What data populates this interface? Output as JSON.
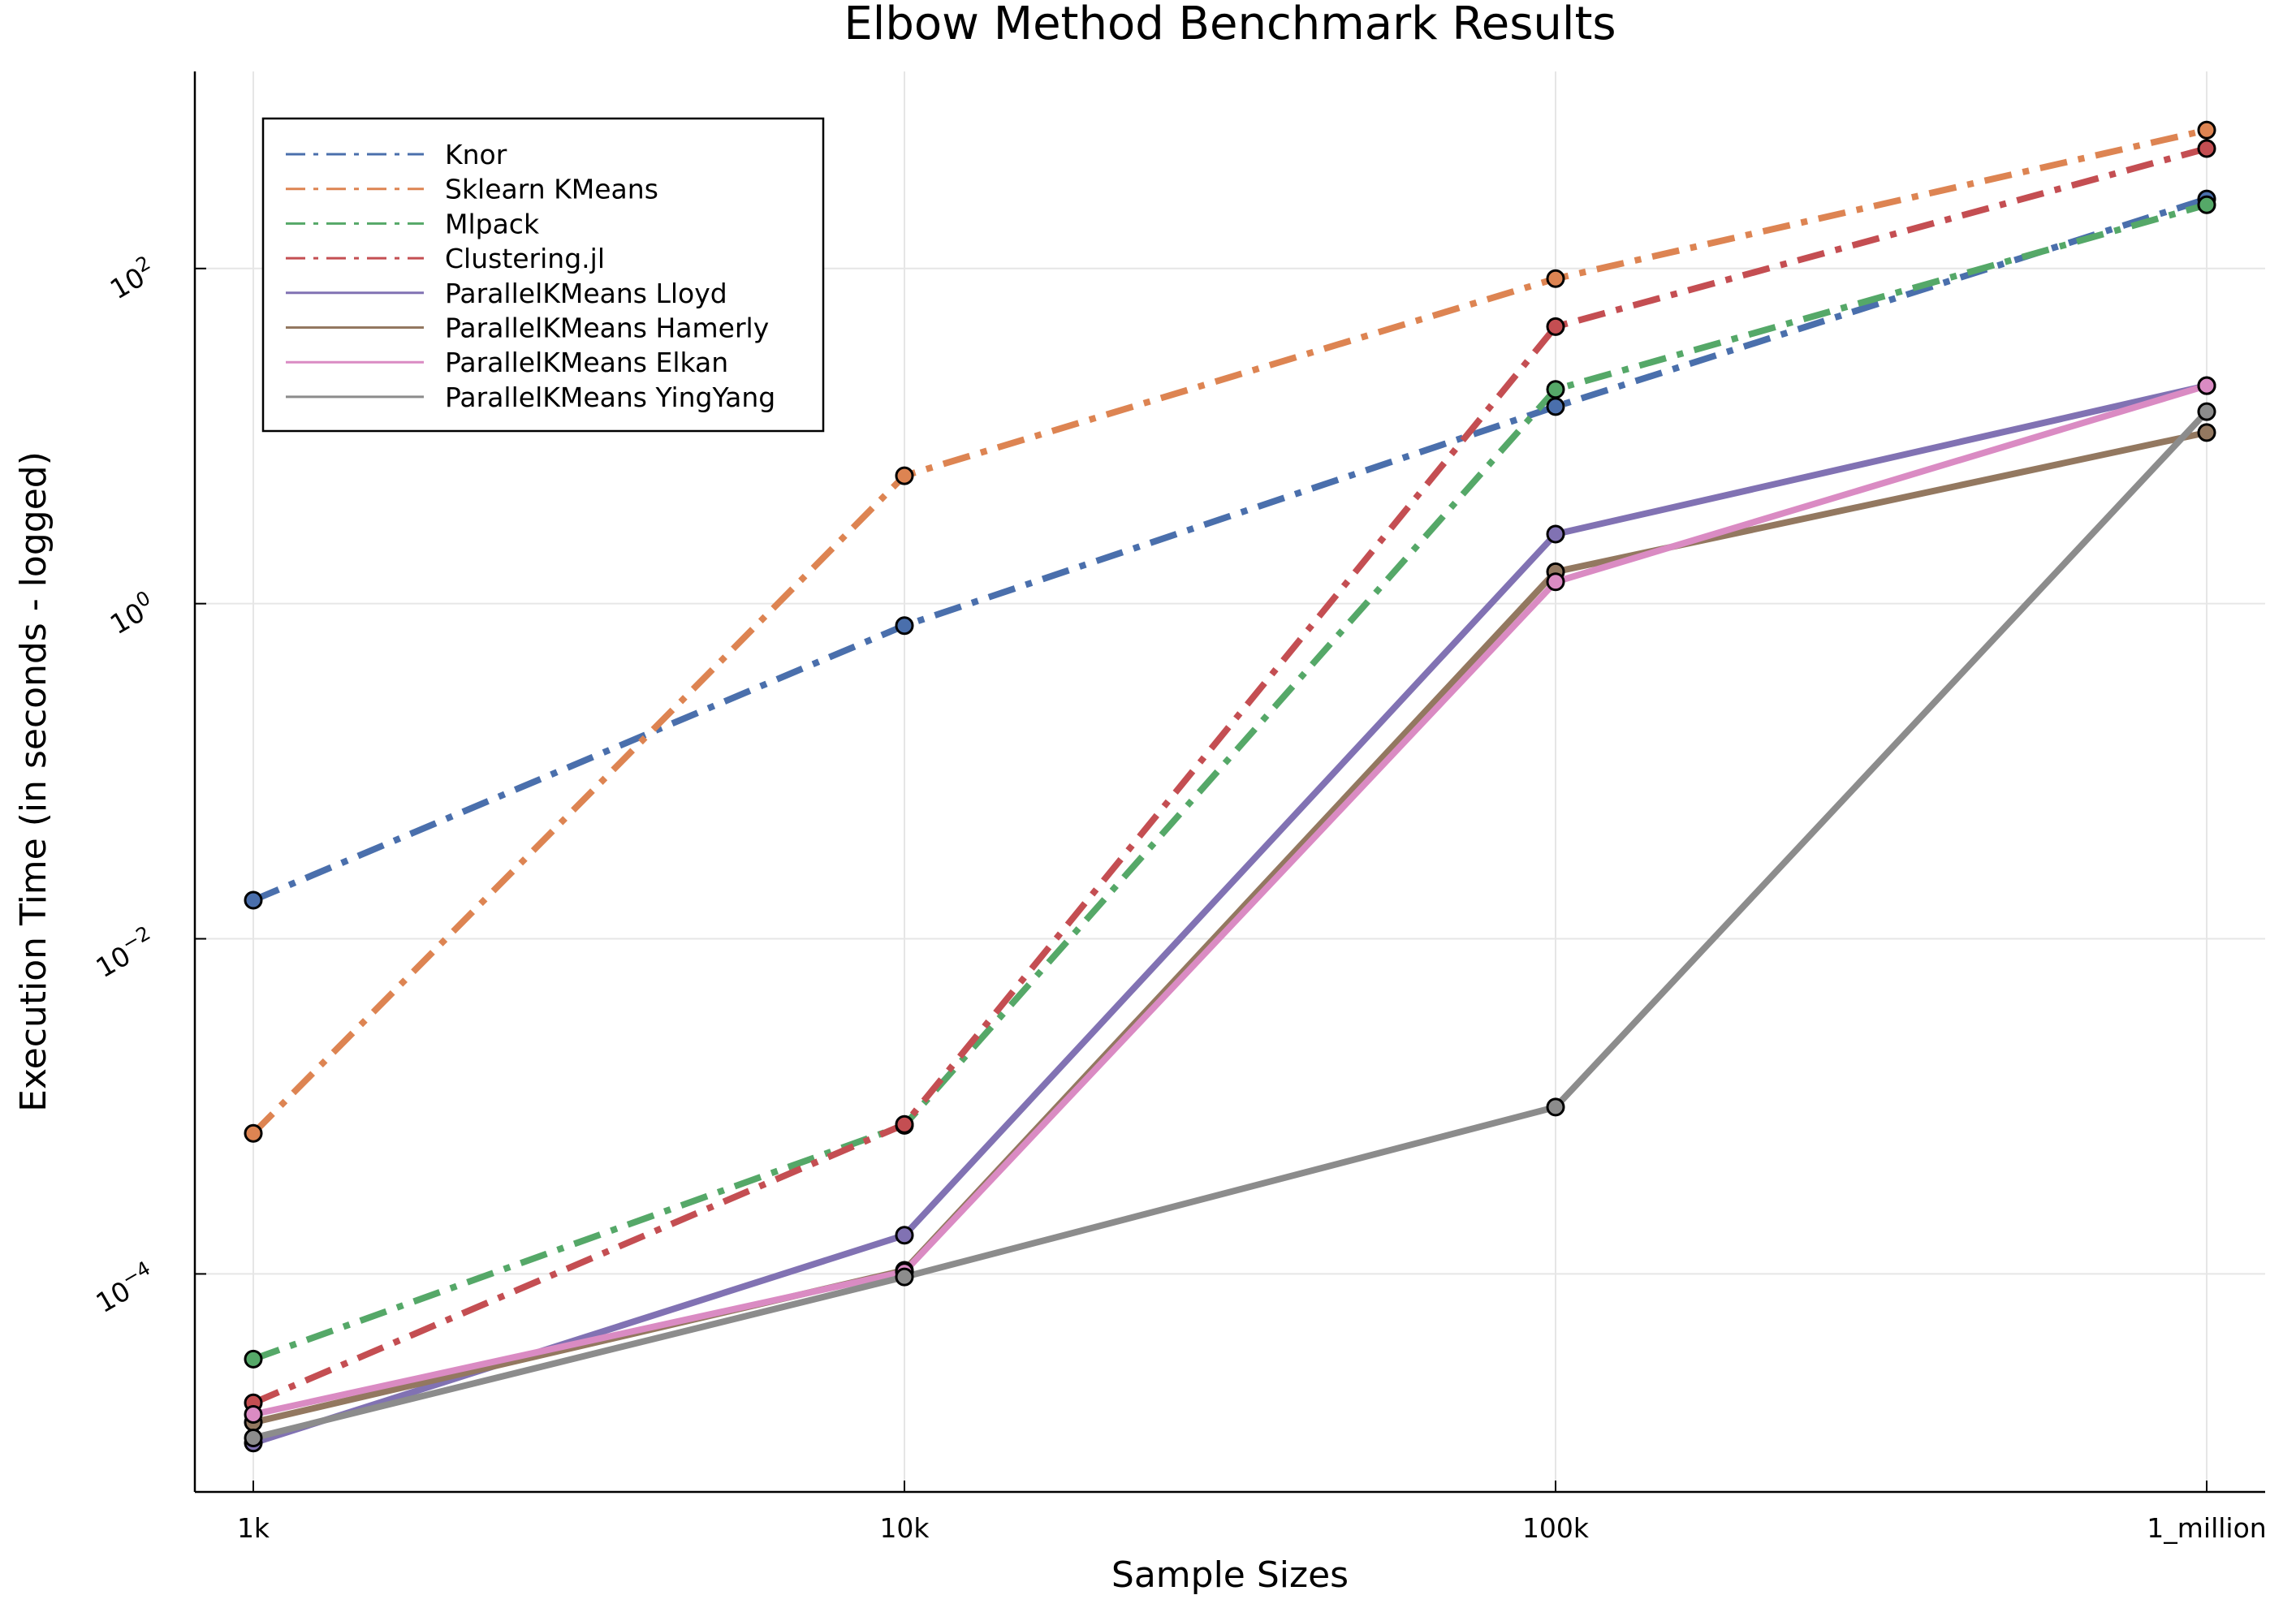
{
  "chart_data": {
    "type": "line",
    "title": "Elbow Method Benchmark Results",
    "xlabel": "Sample Sizes",
    "ylabel": "Execution Time (in seconds - logged)",
    "categories": [
      "1k",
      "10k",
      "100k",
      "1_million"
    ],
    "y_scale": "log10",
    "ylim": [
      5e-06,
      1500
    ],
    "yticks": [
      {
        "value": 0.0001,
        "base": "10",
        "exp": "−4"
      },
      {
        "value": 0.01,
        "base": "10",
        "exp": "−2"
      },
      {
        "value": 1,
        "base": "10",
        "exp": "0"
      },
      {
        "value": 100,
        "base": "10",
        "exp": "2"
      }
    ],
    "grid": true,
    "legend_position": "top-left",
    "series": [
      {
        "name": "Knor",
        "color": "#4a6fac",
        "style": "dashdot",
        "values": [
          0.017,
          0.74,
          15,
          260
        ]
      },
      {
        "name": "Sklearn KMeans",
        "color": "#dd8452",
        "style": "dashdot",
        "values": [
          0.00069,
          5.8,
          87,
          670
        ]
      },
      {
        "name": "Mlpack",
        "color": "#55a868",
        "style": "dashdot",
        "values": [
          3.1e-05,
          0.00077,
          19,
          240
        ]
      },
      {
        "name": "Clustering.jl",
        "color": "#c44e52",
        "style": "dashdot",
        "values": [
          1.7e-05,
          0.00078,
          45,
          520
        ]
      },
      {
        "name": "ParallelKMeans Lloyd",
        "color": "#8172b3",
        "style": "solid",
        "values": [
          9.8e-06,
          0.00017,
          2.6,
          20
        ]
      },
      {
        "name": "ParallelKMeans Hamerly",
        "color": "#937860",
        "style": "solid",
        "values": [
          1.3e-05,
          0.000105,
          1.55,
          10.5
        ]
      },
      {
        "name": "ParallelKMeans Elkan",
        "color": "#da8bc3",
        "style": "solid",
        "values": [
          1.45e-05,
          0.000103,
          1.35,
          20
        ]
      },
      {
        "name": "ParallelKMeans YingYang",
        "color": "#8c8c8c",
        "style": "solid",
        "values": [
          1.05e-05,
          9.6e-05,
          0.00099,
          14
        ]
      }
    ]
  }
}
